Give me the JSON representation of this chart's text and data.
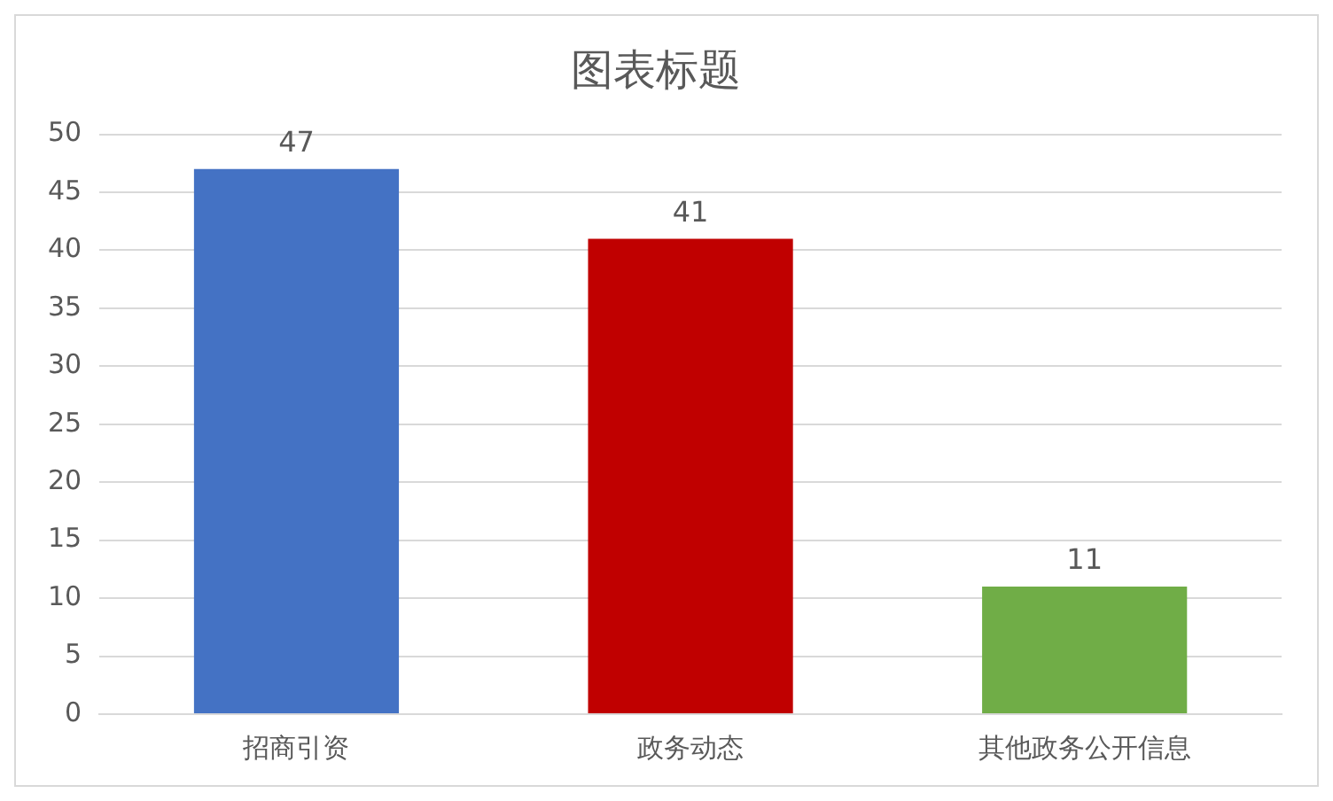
{
  "chart_data": {
    "type": "bar",
    "title": "图表标题",
    "categories": [
      "招商引资",
      "政务动态",
      "其他政务公开信息"
    ],
    "values": [
      47,
      41,
      11
    ],
    "colors": [
      "#4472c4",
      "#c00000",
      "#70ad47"
    ],
    "ylim": [
      0,
      50
    ],
    "yticks": [
      0,
      5,
      10,
      15,
      20,
      25,
      30,
      35,
      40,
      45,
      50
    ],
    "grid": "y",
    "legend": false,
    "data_labels": true
  }
}
